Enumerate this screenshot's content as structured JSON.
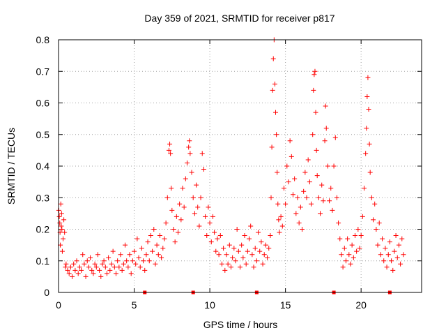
{
  "chart_data": {
    "type": "scatter",
    "title": "Day 359 of 2021, SRMTID for receiver p817",
    "xlabel": "GPS time / hours",
    "ylabel": "SRMTID / TECUs",
    "xlim": [
      0,
      24
    ],
    "ylim": [
      0,
      0.8
    ],
    "x_ticks": [
      0,
      5,
      10,
      15,
      20
    ],
    "y_ticks": [
      0,
      0.1,
      0.2,
      0.3,
      0.4,
      0.5,
      0.6,
      0.7,
      0.8
    ],
    "x_tick_labels": [
      "0",
      "5",
      "10",
      "15",
      "20"
    ],
    "y_tick_labels": [
      "0",
      "0.1",
      "0.2",
      "0.3",
      "0.4",
      "0.5",
      "0.6",
      "0.7",
      "0.8"
    ],
    "grid": true,
    "marker": "+",
    "color": "#ff0000",
    "series": [
      {
        "name": "SRMTID",
        "points": [
          [
            0.02,
            0.26
          ],
          [
            0.05,
            0.24
          ],
          [
            0.08,
            0.22
          ],
          [
            0.1,
            0.19
          ],
          [
            0.12,
            0.15
          ],
          [
            0.15,
            0.28
          ],
          [
            0.18,
            0.21
          ],
          [
            0.2,
            0.25
          ],
          [
            0.22,
            0.2
          ],
          [
            0.25,
            0.13
          ],
          [
            0.3,
            0.17
          ],
          [
            0.35,
            0.23
          ],
          [
            0.4,
            0.19
          ],
          [
            0.45,
            0.08
          ],
          [
            0.5,
            0.09
          ],
          [
            0.6,
            0.07
          ],
          [
            0.7,
            0.06
          ],
          [
            0.8,
            0.08
          ],
          [
            0.9,
            0.05
          ],
          [
            1.0,
            0.09
          ],
          [
            1.1,
            0.07
          ],
          [
            1.2,
            0.1
          ],
          [
            1.3,
            0.06
          ],
          [
            1.4,
            0.08
          ],
          [
            1.5,
            0.07
          ],
          [
            1.6,
            0.12
          ],
          [
            1.7,
            0.09
          ],
          [
            1.8,
            0.05
          ],
          [
            1.9,
            0.1
          ],
          [
            2.0,
            0.08
          ],
          [
            2.1,
            0.11
          ],
          [
            2.2,
            0.07
          ],
          [
            2.3,
            0.06
          ],
          [
            2.4,
            0.09
          ],
          [
            2.5,
            0.08
          ],
          [
            2.6,
            0.12
          ],
          [
            2.7,
            0.07
          ],
          [
            2.8,
            0.05
          ],
          [
            2.9,
            0.09
          ],
          [
            3.0,
            0.1
          ],
          [
            3.1,
            0.08
          ],
          [
            3.2,
            0.06
          ],
          [
            3.3,
            0.11
          ],
          [
            3.4,
            0.07
          ],
          [
            3.5,
            0.09
          ],
          [
            3.6,
            0.13
          ],
          [
            3.7,
            0.08
          ],
          [
            3.8,
            0.06
          ],
          [
            3.9,
            0.1
          ],
          [
            4.0,
            0.08
          ],
          [
            4.1,
            0.12
          ],
          [
            4.2,
            0.07
          ],
          [
            4.3,
            0.09
          ],
          [
            4.4,
            0.15
          ],
          [
            4.5,
            0.1
          ],
          [
            4.6,
            0.08
          ],
          [
            4.7,
            0.12
          ],
          [
            4.8,
            0.06
          ],
          [
            4.9,
            0.1
          ],
          [
            5.0,
            0.13
          ],
          [
            5.1,
            0.09
          ],
          [
            5.2,
            0.17
          ],
          [
            5.3,
            0.11
          ],
          [
            5.4,
            0.08
          ],
          [
            5.5,
            0.14
          ],
          [
            5.6,
            0.1
          ],
          [
            5.7,
            0.07
          ],
          [
            5.8,
            0.12
          ],
          [
            5.9,
            0.16
          ],
          [
            6.0,
            0.1
          ],
          [
            6.1,
            0.18
          ],
          [
            6.2,
            0.13
          ],
          [
            6.3,
            0.2
          ],
          [
            6.4,
            0.09
          ],
          [
            6.5,
            0.15
          ],
          [
            6.6,
            0.12
          ],
          [
            6.7,
            0.18
          ],
          [
            6.8,
            0.11
          ],
          [
            6.9,
            0.14
          ],
          [
            7.0,
            0.17
          ],
          [
            7.1,
            0.22
          ],
          [
            7.2,
            0.3
          ],
          [
            7.3,
            0.45
          ],
          [
            7.35,
            0.47
          ],
          [
            7.4,
            0.44
          ],
          [
            7.45,
            0.33
          ],
          [
            7.5,
            0.26
          ],
          [
            7.6,
            0.2
          ],
          [
            7.7,
            0.16
          ],
          [
            7.8,
            0.24
          ],
          [
            7.9,
            0.19
          ],
          [
            8.0,
            0.28
          ],
          [
            8.1,
            0.23
          ],
          [
            8.2,
            0.33
          ],
          [
            8.3,
            0.27
          ],
          [
            8.4,
            0.36
          ],
          [
            8.5,
            0.41
          ],
          [
            8.6,
            0.46
          ],
          [
            8.65,
            0.48
          ],
          [
            8.7,
            0.44
          ],
          [
            8.8,
            0.38
          ],
          [
            8.9,
            0.3
          ],
          [
            9.0,
            0.25
          ],
          [
            9.1,
            0.34
          ],
          [
            9.2,
            0.27
          ],
          [
            9.3,
            0.21
          ],
          [
            9.4,
            0.3
          ],
          [
            9.5,
            0.44
          ],
          [
            9.6,
            0.39
          ],
          [
            9.7,
            0.24
          ],
          [
            9.8,
            0.18
          ],
          [
            9.9,
            0.27
          ],
          [
            10.0,
            0.22
          ],
          [
            10.1,
            0.16
          ],
          [
            10.2,
            0.24
          ],
          [
            10.3,
            0.19
          ],
          [
            10.4,
            0.13
          ],
          [
            10.5,
            0.17
          ],
          [
            10.6,
            0.12
          ],
          [
            10.7,
            0.18
          ],
          [
            10.8,
            0.09
          ],
          [
            10.9,
            0.14
          ],
          [
            11.0,
            0.07
          ],
          [
            11.1,
            0.12
          ],
          [
            11.2,
            0.09
          ],
          [
            11.3,
            0.15
          ],
          [
            11.4,
            0.08
          ],
          [
            11.5,
            0.11
          ],
          [
            11.6,
            0.14
          ],
          [
            11.7,
            0.1
          ],
          [
            11.8,
            0.2
          ],
          [
            11.9,
            0.13
          ],
          [
            12.0,
            0.08
          ],
          [
            12.1,
            0.15
          ],
          [
            12.2,
            0.11
          ],
          [
            12.3,
            0.18
          ],
          [
            12.4,
            0.09
          ],
          [
            12.5,
            0.13
          ],
          [
            12.6,
            0.17
          ],
          [
            12.7,
            0.21
          ],
          [
            12.8,
            0.12
          ],
          [
            12.9,
            0.08
          ],
          [
            13.0,
            0.14
          ],
          [
            13.1,
            0.1
          ],
          [
            13.2,
            0.19
          ],
          [
            13.3,
            0.13
          ],
          [
            13.4,
            0.16
          ],
          [
            13.5,
            0.09
          ],
          [
            13.6,
            0.12
          ],
          [
            13.7,
            0.15
          ],
          [
            13.8,
            0.11
          ],
          [
            13.9,
            0.14
          ],
          [
            14.0,
            0.18
          ],
          [
            14.05,
            0.3
          ],
          [
            14.1,
            0.46
          ],
          [
            14.15,
            0.64
          ],
          [
            14.2,
            0.74
          ],
          [
            14.25,
            0.8
          ],
          [
            14.3,
            0.66
          ],
          [
            14.35,
            0.57
          ],
          [
            14.4,
            0.5
          ],
          [
            14.45,
            0.38
          ],
          [
            14.5,
            0.28
          ],
          [
            14.55,
            0.23
          ],
          [
            14.6,
            0.19
          ],
          [
            14.7,
            0.24
          ],
          [
            14.8,
            0.21
          ],
          [
            14.9,
            0.33
          ],
          [
            15.0,
            0.28
          ],
          [
            15.1,
            0.4
          ],
          [
            15.2,
            0.35
          ],
          [
            15.3,
            0.48
          ],
          [
            15.4,
            0.43
          ],
          [
            15.5,
            0.31
          ],
          [
            15.6,
            0.36
          ],
          [
            15.7,
            0.25
          ],
          [
            15.8,
            0.3
          ],
          [
            15.9,
            0.22
          ],
          [
            16.0,
            0.27
          ],
          [
            16.1,
            0.2
          ],
          [
            16.2,
            0.32
          ],
          [
            16.3,
            0.38
          ],
          [
            16.4,
            0.3
          ],
          [
            16.5,
            0.42
          ],
          [
            16.6,
            0.35
          ],
          [
            16.7,
            0.28
          ],
          [
            16.8,
            0.5
          ],
          [
            16.85,
            0.64
          ],
          [
            16.9,
            0.69
          ],
          [
            16.95,
            0.7
          ],
          [
            17.0,
            0.57
          ],
          [
            17.05,
            0.45
          ],
          [
            17.1,
            0.37
          ],
          [
            17.2,
            0.3
          ],
          [
            17.3,
            0.25
          ],
          [
            17.4,
            0.34
          ],
          [
            17.5,
            0.29
          ],
          [
            17.6,
            0.48
          ],
          [
            17.65,
            0.59
          ],
          [
            17.7,
            0.52
          ],
          [
            17.8,
            0.4
          ],
          [
            17.9,
            0.29
          ],
          [
            18.0,
            0.33
          ],
          [
            18.1,
            0.26
          ],
          [
            18.2,
            0.4
          ],
          [
            18.3,
            0.49
          ],
          [
            18.4,
            0.3
          ],
          [
            18.5,
            0.22
          ],
          [
            18.6,
            0.17
          ],
          [
            18.7,
            0.12
          ],
          [
            18.8,
            0.08
          ],
          [
            18.9,
            0.14
          ],
          [
            19.0,
            0.1
          ],
          [
            19.1,
            0.17
          ],
          [
            19.2,
            0.12
          ],
          [
            19.3,
            0.09
          ],
          [
            19.4,
            0.15
          ],
          [
            19.5,
            0.11
          ],
          [
            19.6,
            0.18
          ],
          [
            19.7,
            0.13
          ],
          [
            19.8,
            0.2
          ],
          [
            19.9,
            0.14
          ],
          [
            20.0,
            0.18
          ],
          [
            20.1,
            0.24
          ],
          [
            20.2,
            0.33
          ],
          [
            20.3,
            0.44
          ],
          [
            20.35,
            0.52
          ],
          [
            20.4,
            0.62
          ],
          [
            20.45,
            0.68
          ],
          [
            20.5,
            0.58
          ],
          [
            20.55,
            0.47
          ],
          [
            20.6,
            0.38
          ],
          [
            20.7,
            0.3
          ],
          [
            20.8,
            0.23
          ],
          [
            20.9,
            0.28
          ],
          [
            21.0,
            0.2
          ],
          [
            21.1,
            0.15
          ],
          [
            21.2,
            0.22
          ],
          [
            21.3,
            0.12
          ],
          [
            21.4,
            0.17
          ],
          [
            21.5,
            0.1
          ],
          [
            21.6,
            0.14
          ],
          [
            21.7,
            0.08
          ],
          [
            21.8,
            0.12
          ],
          [
            21.9,
            0.16
          ],
          [
            22.0,
            0.1
          ],
          [
            22.1,
            0.07
          ],
          [
            22.2,
            0.13
          ],
          [
            22.3,
            0.18
          ],
          [
            22.4,
            0.11
          ],
          [
            22.5,
            0.15
          ],
          [
            22.6,
            0.09
          ],
          [
            22.7,
            0.17
          ],
          [
            22.8,
            0.12
          ]
        ]
      }
    ],
    "axis_markers": [
      5.7,
      8.9,
      13.1,
      18.2,
      21.9
    ]
  }
}
